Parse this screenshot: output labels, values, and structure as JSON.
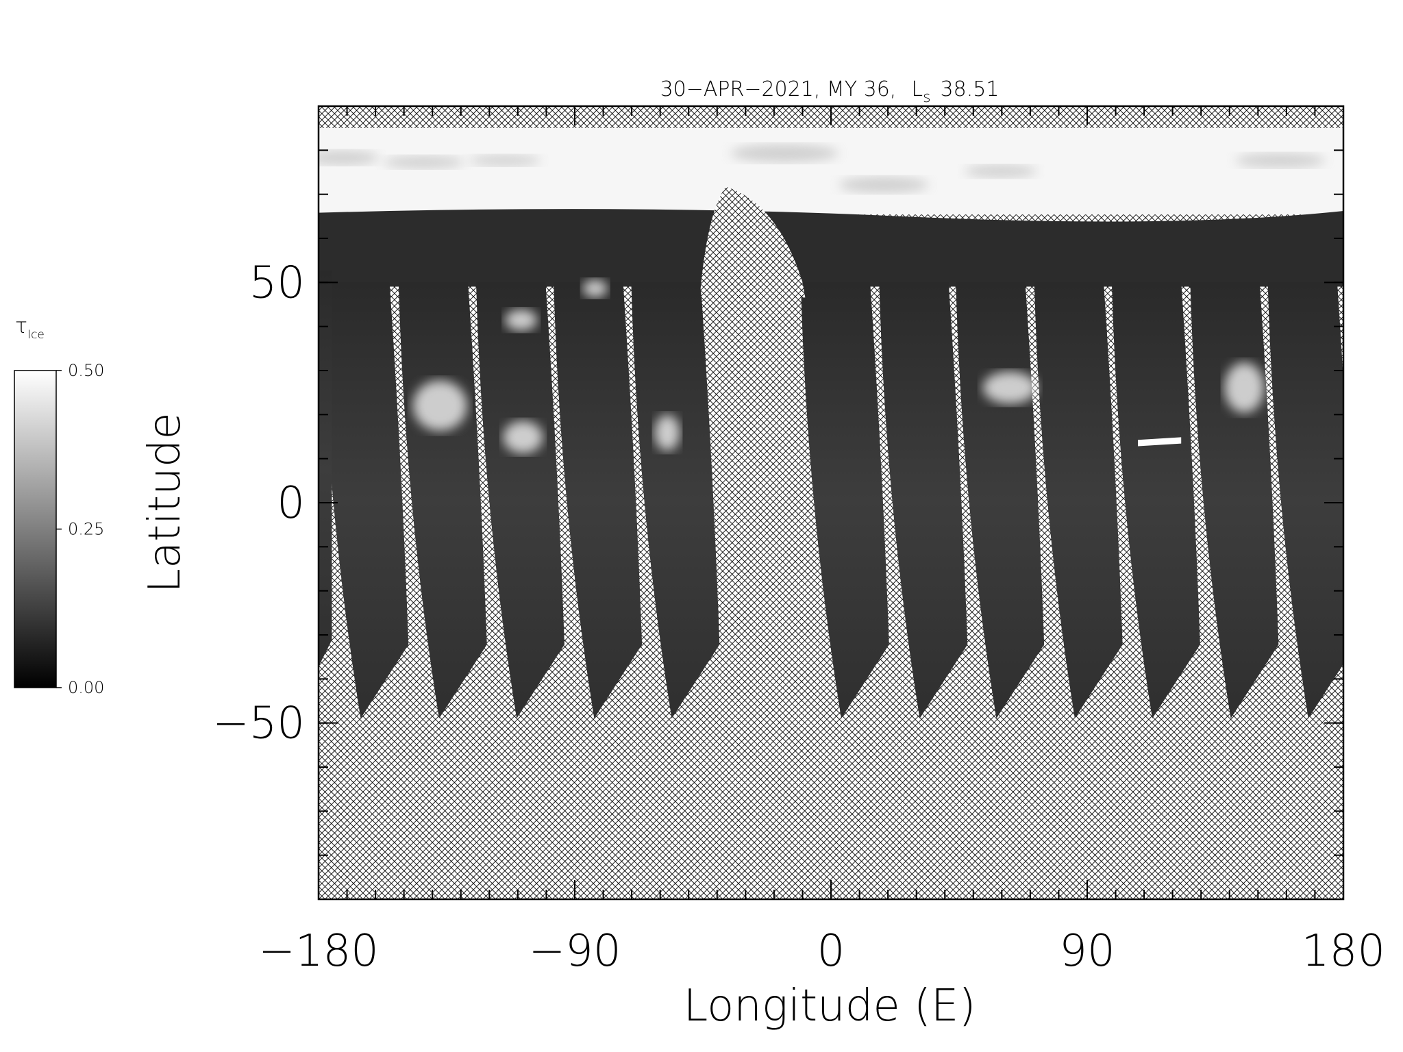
{
  "chart_data": {
    "type": "map",
    "title": "30−APR−2021, MY 36,",
    "title_symbol": "L",
    "title_subscript": "s",
    "title_value": "38.51",
    "xlabel": "Longitude (E)",
    "ylabel": "Latitude",
    "xlim": [
      -180,
      180
    ],
    "ylim": [
      -90,
      90
    ],
    "xticks": [
      {
        "value": -180,
        "label": "−180"
      },
      {
        "value": -90,
        "label": "−90"
      },
      0,
      90,
      180
    ],
    "yticks": [
      {
        "value": -50,
        "label": "−50"
      },
      0,
      50
    ],
    "xminorticks": [
      -180,
      -170,
      -160,
      -150,
      -140,
      -130,
      -120,
      -110,
      -100,
      -90,
      -80,
      -70,
      -60,
      -50,
      -40,
      -30,
      -20,
      -10,
      0,
      10,
      20,
      30,
      40,
      50,
      60,
      70,
      80,
      90,
      100,
      110,
      120,
      130,
      140,
      150,
      160,
      170,
      180
    ],
    "yminorticks": [
      -90,
      -80,
      -70,
      -60,
      -50,
      -40,
      -30,
      -20,
      -10,
      0,
      10,
      20,
      30,
      40,
      50,
      60,
      70,
      80,
      90
    ],
    "colorbar": {
      "label": "τ",
      "label_subscript": "Ice",
      "clim": [
        0,
        0.5
      ],
      "ticks": [
        {
          "value": 0,
          "label": "0.00"
        },
        {
          "value": 0.25,
          "label": "0.25"
        },
        {
          "value": 0.5,
          "label": "0.50"
        }
      ],
      "colors": [
        "#000000",
        "#ffffff"
      ]
    }
  }
}
